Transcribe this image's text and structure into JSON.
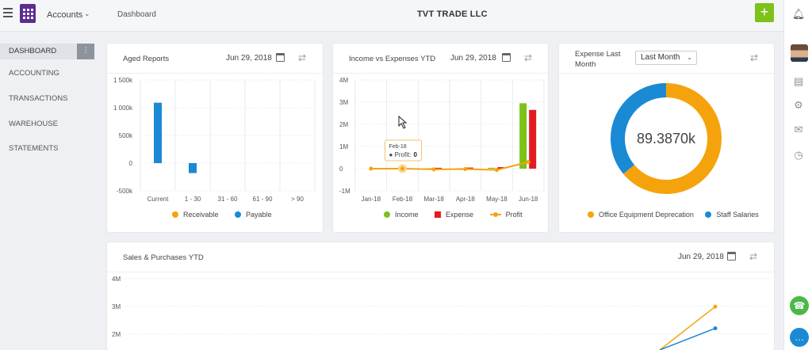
{
  "topbar": {
    "app_name": "Accounts",
    "breadcrumb": "Dashboard",
    "company": "TVT TRADE LLC",
    "add_label": "+"
  },
  "nav": {
    "items": [
      "DASHBOARD",
      "ACCOUNTING",
      "TRANSACTIONS",
      "WAREHOUSE",
      "STATEMENTS"
    ],
    "active": "DASHBOARD"
  },
  "aged": {
    "title": "Aged Reports",
    "date": "Jun 29, 2018"
  },
  "income": {
    "title": "Income vs Expenses YTD",
    "date": "Jun 29, 2018",
    "tooltip_month": "Feb-18",
    "tooltip_label": "Profit:",
    "tooltip_value": "0"
  },
  "expense": {
    "title": "Expense Last Month",
    "select_value": "Last Month",
    "center_value": "89.3870k"
  },
  "sales": {
    "title": "Sales & Purchases YTD",
    "date": "Jun 29, 2018"
  },
  "chart_data": [
    {
      "type": "bar",
      "title": "Aged Reports",
      "categories": [
        "Current",
        "1 - 30",
        "31 - 60",
        "61 - 90",
        "> 90"
      ],
      "y_ticks": [
        "1 500k",
        "1 000k",
        "500k",
        "0",
        "-500k"
      ],
      "ylim": [
        -500000,
        1500000
      ],
      "series": [
        {
          "name": "Receivable",
          "color": "#f5a30c",
          "values": [
            0,
            0,
            0,
            0,
            0
          ]
        },
        {
          "name": "Payable",
          "color": "#1a8ad4",
          "values": [
            1090000,
            -180000,
            0,
            0,
            0
          ]
        }
      ],
      "legend": "bottom"
    },
    {
      "type": "bar",
      "title": "Income vs Expenses YTD",
      "categories": [
        "Jan-18",
        "Feb-18",
        "Mar-18",
        "Apr-18",
        "May-18",
        "Jun-18"
      ],
      "y_ticks": [
        "4M",
        "3M",
        "2M",
        "1M",
        "0",
        "-1M"
      ],
      "ylim": [
        -1000000,
        4000000
      ],
      "series": [
        {
          "name": "Income",
          "color": "#7cc21b",
          "values": [
            0,
            0,
            20000,
            20000,
            40000,
            2950000
          ]
        },
        {
          "name": "Expense",
          "color": "#e31b23",
          "values": [
            0,
            0,
            40000,
            50000,
            70000,
            2650000
          ]
        },
        {
          "name": "Profit",
          "color": "#f5a30c",
          "values": [
            0,
            0,
            -30000,
            -20000,
            -60000,
            300000
          ]
        }
      ],
      "legend": "bottom"
    },
    {
      "type": "pie",
      "title": "Expense Last Month",
      "center_label": "89.3870k",
      "slices": [
        {
          "name": "Office Equipment Deprecation",
          "color": "#f5a30c",
          "value": 64
        },
        {
          "name": "Staff Salaries",
          "color": "#1a8ad4",
          "value": 36
        }
      ],
      "legend": "bottom"
    },
    {
      "type": "line",
      "title": "Sales & Purchases YTD",
      "y_ticks": [
        "4M",
        "3M",
        "2M"
      ],
      "ylim": [
        1700000,
        4000000
      ],
      "series": [
        {
          "name": "",
          "color": "#f5a30c",
          "values": [
            1700000,
            3100000
          ]
        },
        {
          "name": "",
          "color": "#1a8ad4",
          "values": [
            1700000,
            2400000
          ]
        }
      ]
    }
  ]
}
